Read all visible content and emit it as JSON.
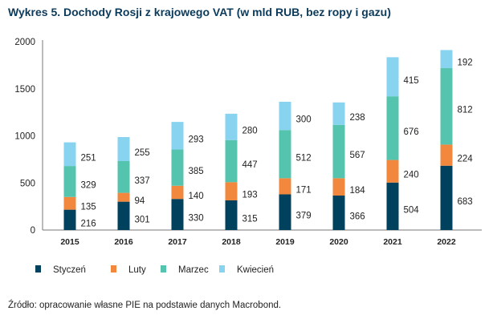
{
  "chart_data": {
    "type": "bar",
    "stacked": true,
    "title": "Wykres 5.   Dochody Rosji z krajowego VAT (w mld RUB, bez ropy i gazu)",
    "source": "Źródło: opracowanie własne PIE na podstawie danych Macrobond.",
    "xlabel": "",
    "ylabel": "",
    "ylim": [
      0,
      2000
    ],
    "yticks": [
      0,
      500,
      1000,
      1500,
      2000
    ],
    "legend_position": "bottom",
    "categories": [
      "2015",
      "2016",
      "2017",
      "2018",
      "2019",
      "2020",
      "2021",
      "2022"
    ],
    "series": [
      {
        "name": "Styczeń",
        "color": "#00415e",
        "values": [
          216,
          301,
          330,
          315,
          379,
          366,
          504,
          683
        ]
      },
      {
        "name": "Luty",
        "color": "#f2883d",
        "values": [
          135,
          94,
          140,
          193,
          171,
          184,
          240,
          224
        ]
      },
      {
        "name": "Marzec",
        "color": "#55c4ae",
        "values": [
          329,
          337,
          385,
          447,
          512,
          567,
          676,
          812
        ]
      },
      {
        "name": "Kwiecień",
        "color": "#88d3f0",
        "values": [
          251,
          255,
          293,
          280,
          300,
          238,
          415,
          192
        ]
      }
    ]
  }
}
